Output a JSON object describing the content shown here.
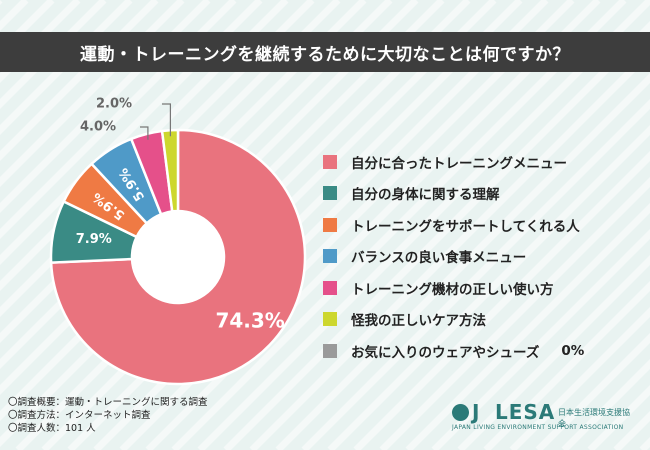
{
  "title": "運動・トレーニングを継続するために大切なことは何ですか？",
  "chart_data": {
    "type": "pie",
    "subtype": "donut",
    "unit": "%",
    "slices": [
      {
        "label": "自分に合ったトレーニングメニュー",
        "value": 74.3,
        "color": "#e9737e",
        "display": "74.3%"
      },
      {
        "label": "自分の身体に関する理解",
        "value": 7.9,
        "color": "#3a8b85",
        "display": "7.9%"
      },
      {
        "label": "トレーニングをサポートしてくれる人",
        "value": 5.9,
        "color": "#ef7a44",
        "display": "5.9%"
      },
      {
        "label": "バランスの良い食事メニュー",
        "value": 5.9,
        "color": "#4f9ac8",
        "display": "5.9%"
      },
      {
        "label": "トレーニング機材の正しい使い方",
        "value": 4.0,
        "color": "#e5508a",
        "display": "4.0%"
      },
      {
        "label": "怪我の正しいケア方法",
        "value": 2.0,
        "color": "#cdd72e",
        "display": "2.0%"
      },
      {
        "label": "お気に入りのウェアやシューズ",
        "value": 0,
        "color": "#9a9a9a",
        "display": "0%"
      }
    ]
  },
  "notes": [
    "〇調査概要：運動・トレーニングに関する調査",
    "〇調査方法：インターネット調査",
    "〇調査人数：101 人"
  ],
  "logo": {
    "mark": "J",
    "name": "LESA",
    "jp": "日本生活環境支援協会",
    "en": "JAPAN LIVING ENVIRONMENT SUPPORT ASSOCIATION"
  }
}
